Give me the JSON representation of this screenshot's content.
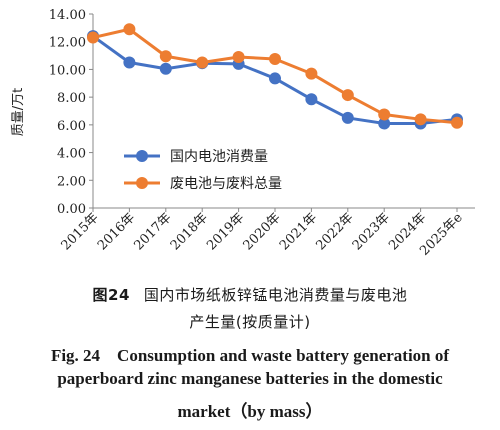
{
  "chart_data": {
    "type": "line",
    "categories": [
      "2015年",
      "2016年",
      "2017年",
      "2018年",
      "2019年",
      "2020年",
      "2021年",
      "2022年",
      "2023年",
      "2024年",
      "2025年e"
    ],
    "series": [
      {
        "name": "国内电池消费量",
        "color": "#4472c4",
        "values": [
          12.4,
          10.5,
          10.05,
          10.45,
          10.4,
          9.35,
          7.85,
          6.5,
          6.1,
          6.1,
          6.4
        ]
      },
      {
        "name": "废电池与废料总量",
        "color": "#ed7d31",
        "values": [
          12.3,
          12.9,
          10.95,
          10.5,
          10.9,
          10.75,
          9.7,
          8.15,
          6.75,
          6.4,
          6.15
        ]
      }
    ],
    "ylabel": "质量/万t",
    "ylim": [
      0,
      14
    ],
    "yticks": [
      "0.00",
      "2.00",
      "4.00",
      "6.00",
      "8.00",
      "10.00",
      "12.00",
      "14.00"
    ],
    "grid": false,
    "legend_position": "inside-lower-left"
  },
  "caption": {
    "cn_number": "图24",
    "cn_line1": "国内市场纸板锌锰电池消费量与废电池",
    "cn_line2": "产生量(按质量计)",
    "en_line1": "Fig. 24　Consumption and waste battery generation of",
    "en_line2": "paperboard zinc manganese batteries in the domestic",
    "en_line3": "market（by mass）"
  }
}
